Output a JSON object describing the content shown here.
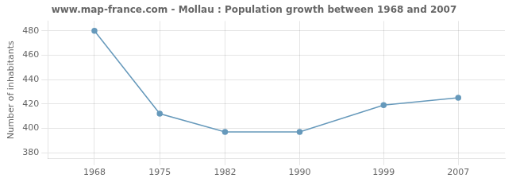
{
  "chart_data": {
    "type": "line",
    "title": "www.map-france.com - Mollau : Population growth between 1968 and 2007",
    "ylabel": "Number of inhabitants",
    "x": [
      1968,
      1975,
      1982,
      1990,
      1999,
      2007
    ],
    "values": [
      480,
      412,
      397,
      397,
      419,
      425
    ],
    "color": "#6699bb",
    "marker": "o",
    "xlim": [
      1963,
      2012
    ],
    "ylim": [
      375,
      488
    ],
    "xticks": [
      1968,
      1975,
      1982,
      1990,
      1999,
      2007
    ],
    "yticks": [
      380,
      400,
      420,
      440,
      460,
      480
    ],
    "grid": true
  }
}
